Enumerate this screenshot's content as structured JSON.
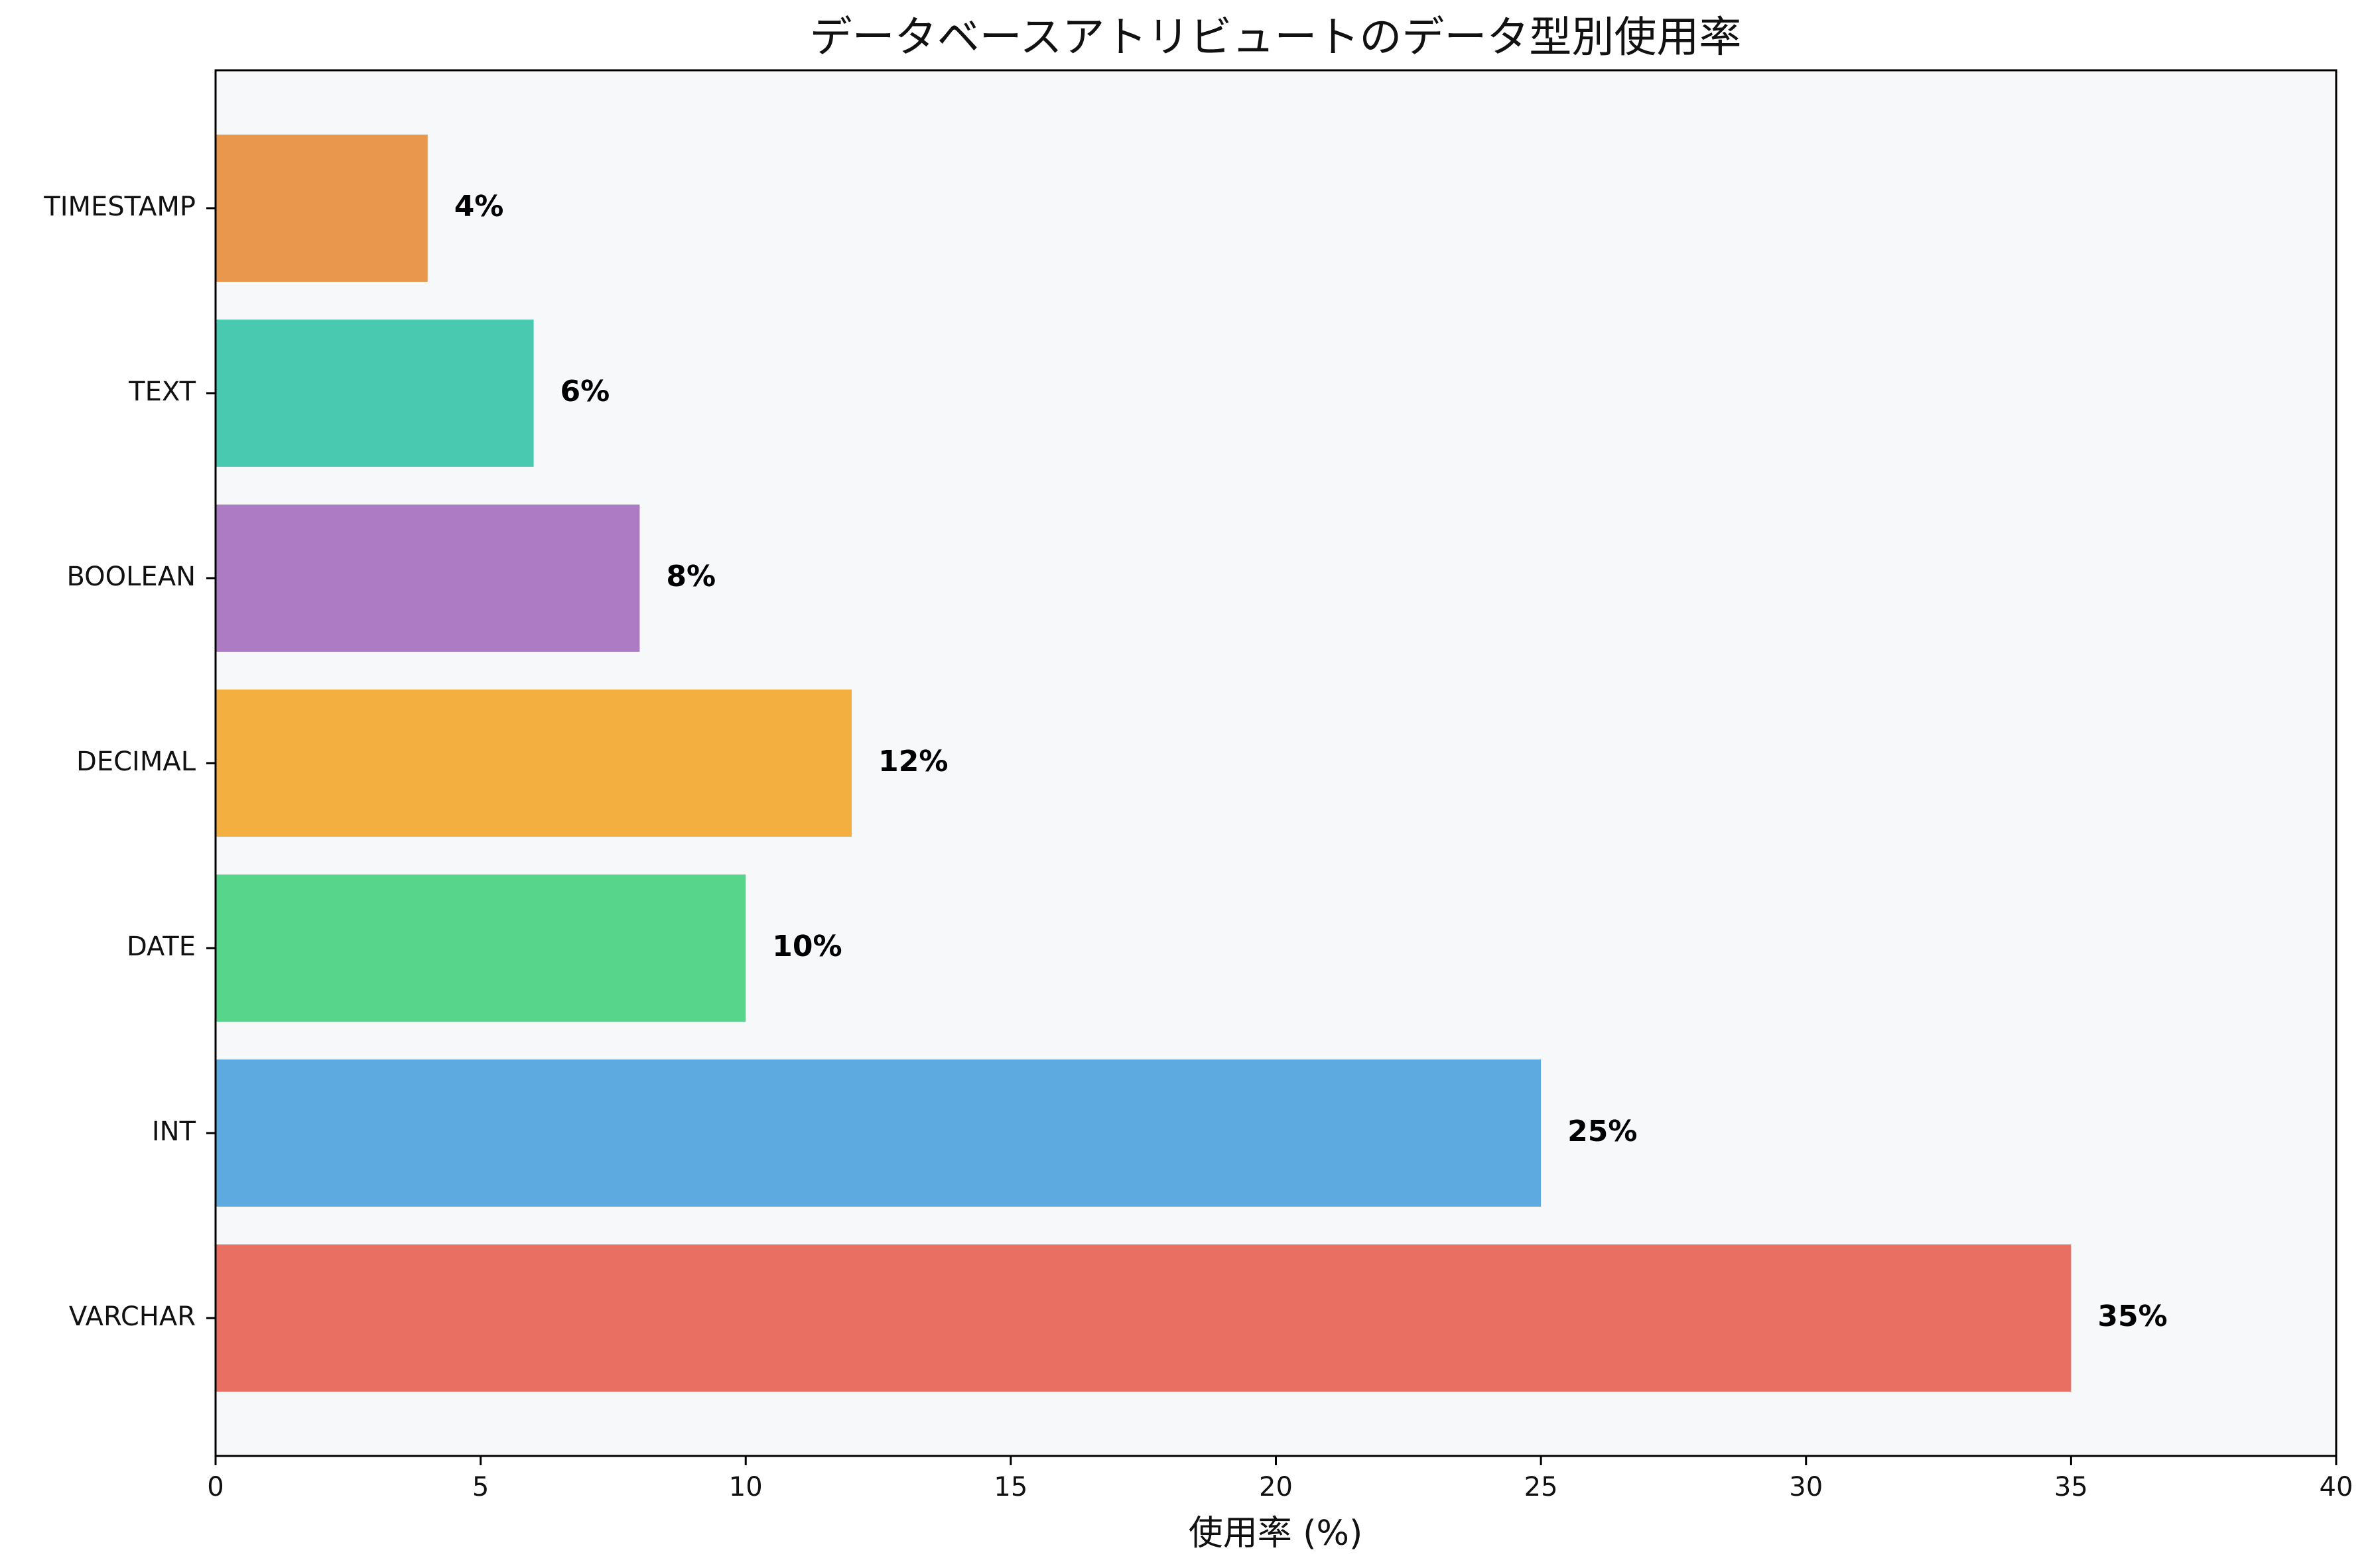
{
  "chart_data": {
    "type": "bar",
    "orientation": "horizontal",
    "title": "データベースアトリビュートのデータ型別使用率",
    "xlabel": "使用率 (%)",
    "ylabel": "",
    "xlim": [
      0,
      40
    ],
    "x_ticks": [
      "0",
      "5",
      "10",
      "15",
      "20",
      "25",
      "30",
      "35",
      "40"
    ],
    "categories": [
      "VARCHAR",
      "INT",
      "DATE",
      "DECIMAL",
      "BOOLEAN",
      "TEXT",
      "TIMESTAMP"
    ],
    "values": [
      35,
      25,
      10,
      12,
      8,
      6,
      4
    ],
    "data_labels": [
      "35%",
      "25%",
      "10%",
      "12%",
      "8%",
      "6%",
      "4%"
    ],
    "colors": [
      "#ea6f63",
      "#5daae0",
      "#57d58a",
      "#f3af40",
      "#ad7bc4",
      "#48c9b0",
      "#e8974c"
    ],
    "plot_background": "#f7f8fa",
    "grid": false
  }
}
